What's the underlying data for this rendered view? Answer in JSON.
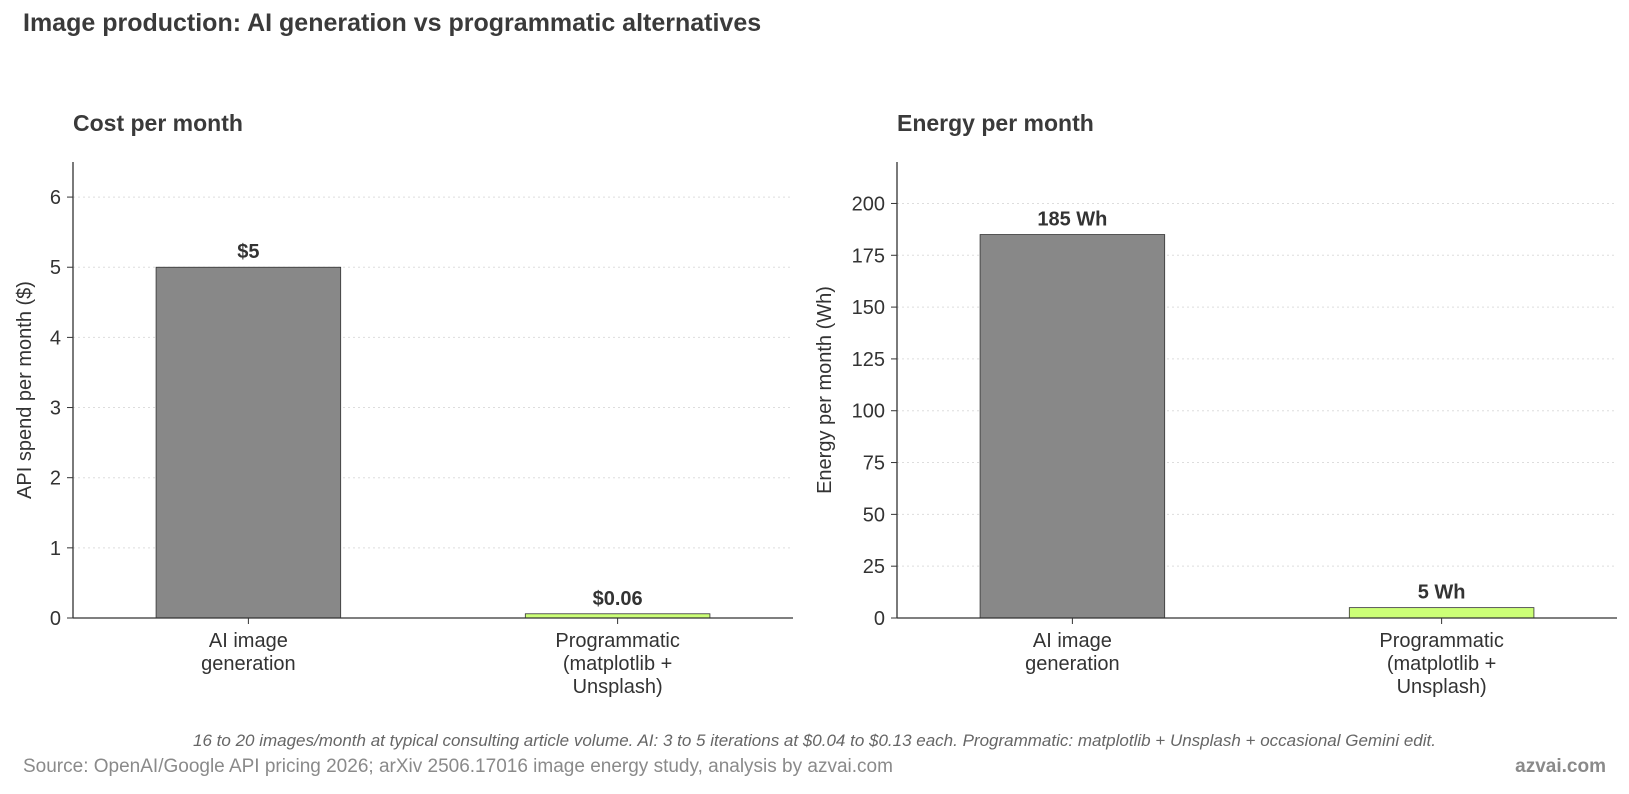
{
  "figure": {
    "title": "Image production: AI generation vs programmatic alternatives",
    "footnote": "16 to 20 images/month at typical consulting article volume. AI: 3 to 5 iterations at $0.04 to $0.13 each. Programmatic: matplotlib + Unsplash + occasional Gemini edit.",
    "source": "Source: OpenAI/Google API pricing 2026; arXiv 2506.17016 image energy study, analysis by azvai.com",
    "brand": "azvai.com"
  },
  "colors": {
    "ai_bar": "#888888",
    "programmatic_bar": "#ccff77",
    "bar_edge": "#333333",
    "text": "#333333",
    "grid": "#dddddd"
  },
  "chart_data": [
    {
      "type": "bar",
      "title": "Cost per month",
      "ylabel": "API spend per month ($)",
      "xlabel": "",
      "categories": [
        [
          "AI image",
          "generation"
        ],
        [
          "Programmatic",
          "(matplotlib +",
          "Unsplash)"
        ]
      ],
      "values": [
        5,
        0.06
      ],
      "value_labels": [
        "$5",
        "$0.06"
      ],
      "ylim": [
        0,
        6.5
      ],
      "yticks": [
        0,
        1,
        2,
        3,
        4,
        5,
        6
      ],
      "ytick_labels": [
        "0",
        "1",
        "2",
        "3",
        "4",
        "5",
        "6"
      ],
      "grid": true,
      "bar_colors": [
        "#888888",
        "#ccff77"
      ]
    },
    {
      "type": "bar",
      "title": "Energy per month",
      "ylabel": "Energy per month (Wh)",
      "xlabel": "",
      "categories": [
        [
          "AI image",
          "generation"
        ],
        [
          "Programmatic",
          "(matplotlib +",
          "Unsplash)"
        ]
      ],
      "values": [
        185,
        5
      ],
      "value_labels": [
        "185 Wh",
        "5 Wh"
      ],
      "ylim": [
        0,
        220
      ],
      "yticks": [
        0,
        25,
        50,
        75,
        100,
        125,
        150,
        175,
        200
      ],
      "ytick_labels": [
        "0",
        "25",
        "50",
        "75",
        "100",
        "125",
        "150",
        "175",
        "200"
      ],
      "grid": true,
      "bar_colors": [
        "#888888",
        "#ccff77"
      ]
    }
  ]
}
